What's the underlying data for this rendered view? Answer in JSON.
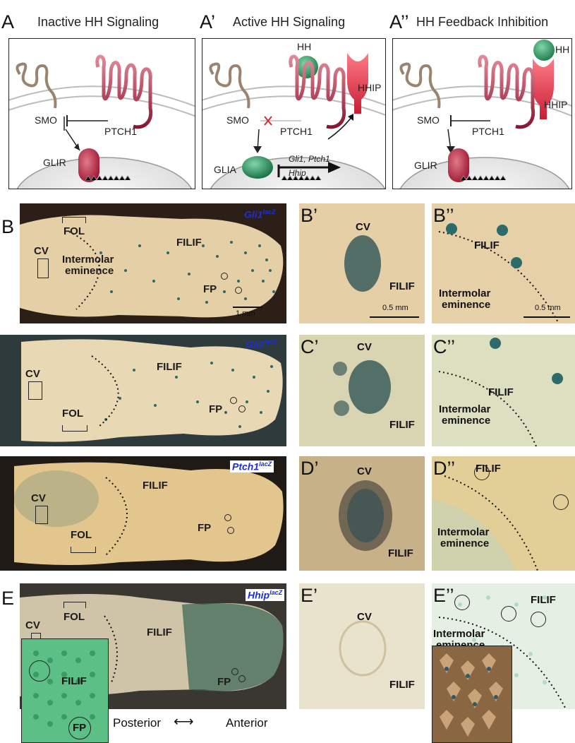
{
  "panel_a": {
    "labels": [
      "A",
      "A’",
      "A’’"
    ],
    "titles": [
      "Inactive HH Signaling",
      "Active HH Signaling",
      "HH Feedback Inhibition"
    ],
    "smo": "SMO",
    "ptch1": "PTCH1",
    "hh": "HH",
    "hhip": "HHIP",
    "glir": "GLIR",
    "glia": "GLIA",
    "targets_line1": "Gli1, Ptch1",
    "targets_line2": "Hhip"
  },
  "rows": [
    {
      "label": "B",
      "sub1": "B’",
      "sub2": "B’’",
      "gene": "Gli1",
      "sup": "lacZ"
    },
    {
      "label": "C",
      "sub1": "C’",
      "sub2": "C’’",
      "gene": "Gli2",
      "sup": "lacZ"
    },
    {
      "label": "D",
      "sub1": "D’",
      "sub2": "D’’",
      "gene": "Ptch1",
      "sup": "lacZ"
    },
    {
      "label": "E",
      "sub1": "E’",
      "sub2": "E’’",
      "gene": "Hhip",
      "sup": "lacZ"
    }
  ],
  "terms": {
    "cv": "CV",
    "fol": "FOL",
    "filif": "FILIF",
    "fp": "FP",
    "intermolar_1": "Intermolar",
    "intermolar_2": "eminence"
  },
  "scale": {
    "mm1": "1 mm",
    "mm05a": "0.5 mm",
    "mm05b": "0.5 mm"
  },
  "axis": {
    "posterior": "Posterior",
    "anterior": "Anterior"
  }
}
